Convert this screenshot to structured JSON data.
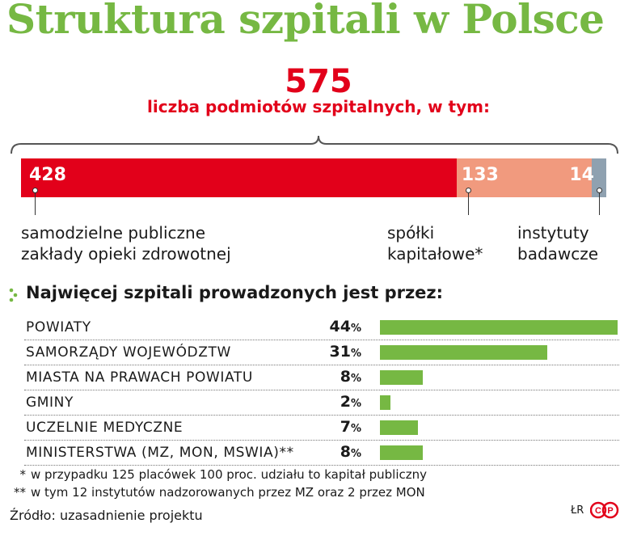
{
  "title": "Struktura szpitali w Polsce",
  "total": {
    "value": "575",
    "label": "liczba podmiotów szpitalnych, w tym:"
  },
  "colors": {
    "green": "#76b843",
    "red": "#e2001a",
    "salmon": "#f19a7e",
    "gray": "#8fa1b0"
  },
  "stacked_labels": {
    "seg1": [
      "samodzielne publiczne",
      "zakłady opieki zdrowotnej"
    ],
    "seg2": [
      "spółki",
      "kapitałowe*"
    ],
    "seg3": [
      "instytuty",
      "badawcze"
    ]
  },
  "ranking_title": "Najwięcej szpitali prowadzonych jest przez:",
  "footnotes": [
    {
      "mark": "*",
      "text": "w przypadku 125 placówek 100 proc. udziału to kapitał publiczny"
    },
    {
      "mark": "**",
      "text": "w tym 12 instytutów nadzorowanych przez MZ oraz 2 przez MON"
    }
  ],
  "source": "Źródło: uzasadnienie projektu",
  "credit": "ŁR",
  "logo_text": "PAP",
  "chart_data": [
    {
      "type": "bar",
      "orientation": "horizontal-stacked",
      "total": 575,
      "categories": [
        "samodzielne publiczne zakłady opieki zdrowotnej",
        "spółki kapitałowe*",
        "instytuty badawcze"
      ],
      "values": [
        428,
        133,
        14
      ],
      "labels": [
        "428",
        "133",
        "14"
      ]
    },
    {
      "type": "bar",
      "orientation": "horizontal",
      "title": "Najwięcej szpitali prowadzonych jest przez:",
      "unit": "%",
      "categories": [
        "POWIATY",
        "SAMORZĄDY WOJEWÓDZTW",
        "MIASTA NA PRAWACH POWIATU",
        "GMINY",
        "UCZELNIE MEDYCZNE",
        "MINISTERSTWA (MZ, MON, MSWIA)**"
      ],
      "values": [
        44,
        31,
        8,
        2,
        7,
        8
      ],
      "xlim": [
        0,
        44
      ]
    }
  ]
}
